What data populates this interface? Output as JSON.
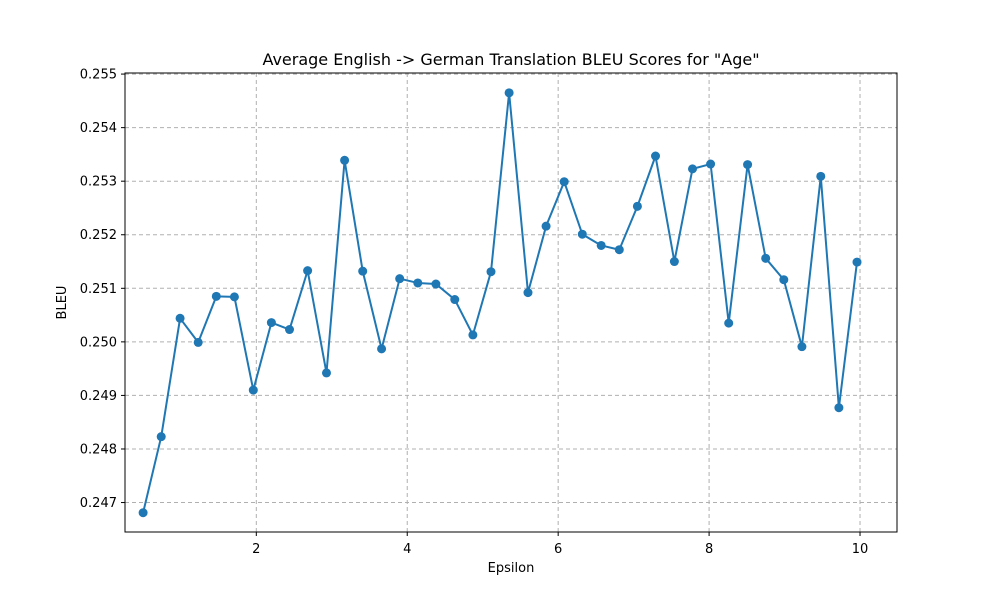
{
  "chart_data": {
    "type": "line",
    "title": "Average English -> German Translation BLEU Scores for \"Age\"",
    "xlabel": "Epsilon",
    "ylabel": "BLEU",
    "xlim": [
      0.26,
      10.49
    ],
    "ylim": [
      0.24645,
      0.25502
    ],
    "xticks": [
      2,
      4,
      6,
      8,
      10
    ],
    "yticks": [
      0.247,
      0.248,
      0.249,
      0.25,
      0.251,
      0.252,
      0.253,
      0.254,
      0.255
    ],
    "xtick_labels": [
      "2",
      "4",
      "6",
      "8",
      "10"
    ],
    "ytick_labels": [
      "0.247",
      "0.248",
      "0.249",
      "0.250",
      "0.251",
      "0.252",
      "0.253",
      "0.254",
      "0.255"
    ],
    "grid": true,
    "marker": "circle",
    "color": "#1f77b4",
    "series": [
      {
        "name": "",
        "x": [
          0.5,
          0.74,
          0.99,
          1.23,
          1.47,
          1.71,
          1.96,
          2.2,
          2.44,
          2.68,
          2.93,
          3.17,
          3.41,
          3.66,
          3.9,
          4.14,
          4.38,
          4.63,
          4.87,
          5.11,
          5.35,
          5.6,
          5.84,
          6.08,
          6.32,
          6.57,
          6.81,
          7.05,
          7.29,
          7.54,
          7.78,
          8.02,
          8.26,
          8.51,
          8.75,
          8.99,
          9.23,
          9.48,
          9.72,
          9.96
        ],
        "y": [
          0.24681,
          0.24823,
          0.25044,
          0.24999,
          0.25085,
          0.25084,
          0.2491,
          0.25036,
          0.25023,
          0.25133,
          0.24942,
          0.25339,
          0.25132,
          0.24987,
          0.25118,
          0.2511,
          0.25108,
          0.25079,
          0.25013,
          0.25131,
          0.25465,
          0.25092,
          0.25216,
          0.25299,
          0.25201,
          0.2518,
          0.25172,
          0.25253,
          0.25347,
          0.2515,
          0.25323,
          0.25332,
          0.25035,
          0.25331,
          0.25156,
          0.25116,
          0.24991,
          0.25309,
          0.24877,
          0.25149
        ]
      }
    ]
  }
}
